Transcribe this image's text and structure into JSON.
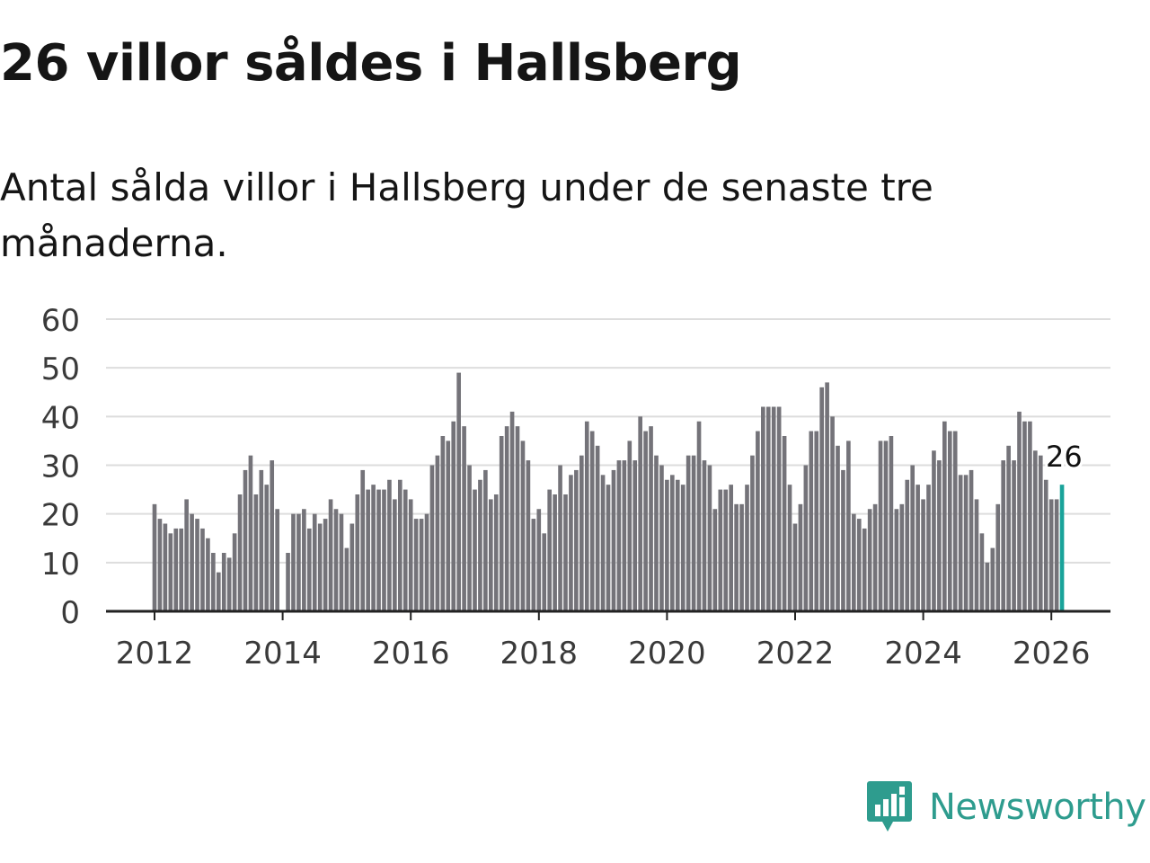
{
  "title": "26 villor såldes i Hallsberg",
  "subtitle": "Antal sålda villor i Hallsberg under de senaste tre månaderna.",
  "brand": {
    "name": "Newsworthy",
    "color": "#2e9c8e",
    "icon": "newsworthy-logo-icon"
  },
  "chart_data": {
    "type": "bar",
    "title": "26 villor såldes i Hallsberg",
    "xlabel": "",
    "ylabel": "",
    "ylim": [
      0,
      60
    ],
    "yticks": [
      0,
      10,
      20,
      30,
      40,
      50,
      60
    ],
    "xticks": [
      2012,
      2014,
      2016,
      2018,
      2020,
      2022,
      2024,
      2026
    ],
    "x_start": 2012.0,
    "x_step": 0.08333,
    "values": [
      22,
      19,
      18,
      16,
      17,
      17,
      23,
      20,
      19,
      17,
      15,
      12,
      8,
      12,
      11,
      16,
      24,
      29,
      32,
      24,
      29,
      26,
      31,
      21,
      null,
      12,
      20,
      20,
      21,
      17,
      20,
      18,
      19,
      23,
      21,
      20,
      13,
      18,
      24,
      29,
      25,
      26,
      25,
      25,
      27,
      23,
      27,
      25,
      23,
      19,
      19,
      20,
      30,
      32,
      36,
      35,
      39,
      49,
      38,
      30,
      25,
      27,
      29,
      23,
      24,
      36,
      38,
      41,
      38,
      35,
      31,
      19,
      21,
      16,
      25,
      24,
      30,
      24,
      28,
      29,
      32,
      39,
      37,
      34,
      28,
      26,
      29,
      31,
      31,
      35,
      31,
      40,
      37,
      38,
      32,
      30,
      27,
      28,
      27,
      26,
      32,
      32,
      39,
      31,
      30,
      21,
      25,
      25,
      26,
      22,
      22,
      26,
      32,
      37,
      42,
      42,
      42,
      42,
      36,
      26,
      18,
      22,
      30,
      37,
      37,
      46,
      47,
      40,
      34,
      29,
      35,
      20,
      19,
      17,
      21,
      22,
      35,
      35,
      36,
      21,
      22,
      27,
      30,
      26,
      23,
      26,
      33,
      31,
      39,
      37,
      37,
      28,
      28,
      29,
      23,
      16,
      10,
      13,
      22,
      31,
      34,
      31,
      41,
      39,
      39,
      33,
      32,
      27,
      23,
      23,
      26
    ],
    "highlight_last": true,
    "bar_color": "#747379",
    "highlight_color": "#1aa39a",
    "annotation": {
      "text": "26",
      "target": "last"
    }
  }
}
